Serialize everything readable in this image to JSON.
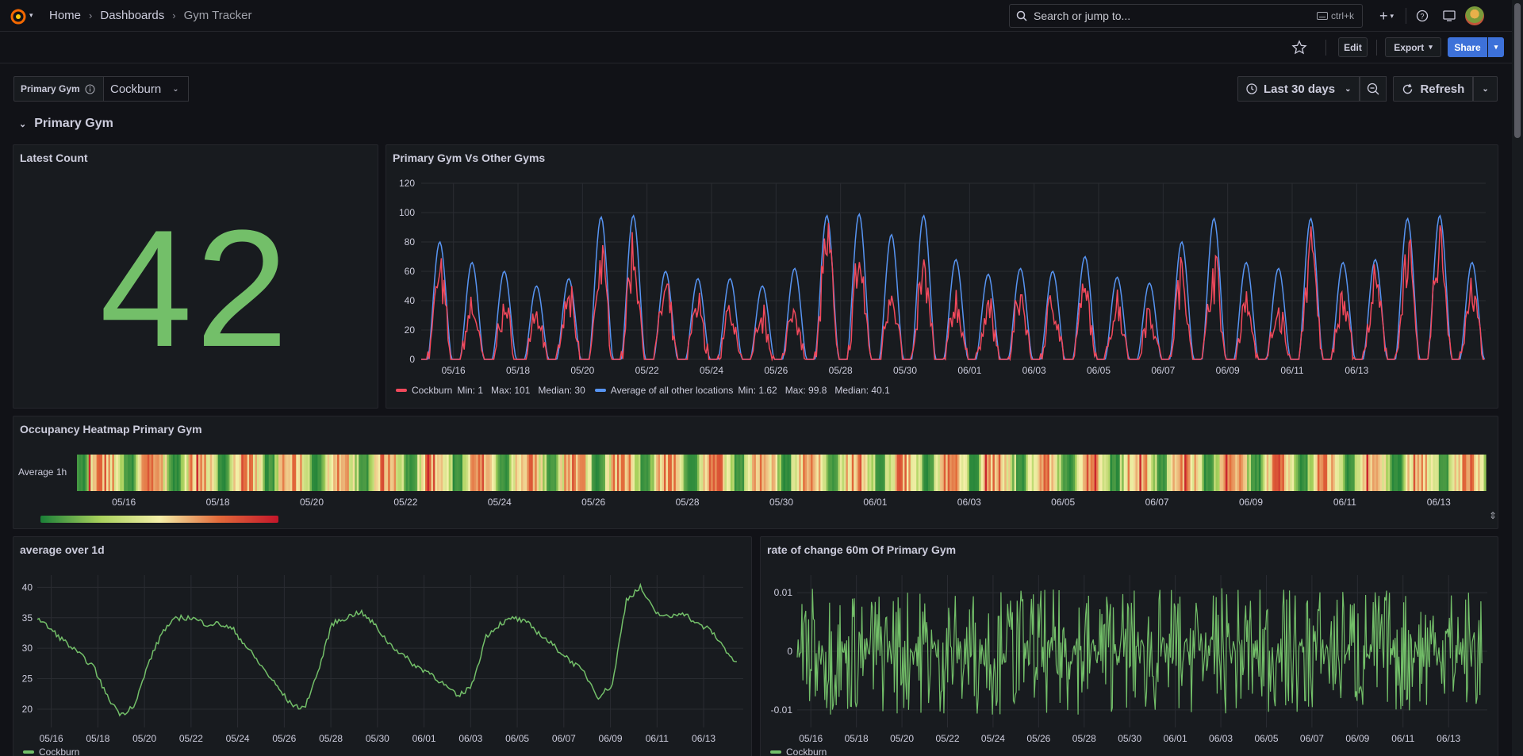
{
  "nav": {
    "breadcrumbs": [
      "Home",
      "Dashboards",
      "Gym Tracker"
    ],
    "search_placeholder": "Search or jump to...",
    "search_shortcut": "ctrl+k"
  },
  "toolbar": {
    "edit_label": "Edit",
    "export_label": "Export",
    "share_label": "Share"
  },
  "variables": {
    "primary_gym_label": "Primary Gym",
    "primary_gym_value": "Cockburn"
  },
  "time": {
    "range_label": "Last 30 days",
    "refresh_label": "Refresh"
  },
  "row": {
    "title": "Primary Gym"
  },
  "colors": {
    "red": "#f2495c",
    "blue": "#5794f2",
    "green": "#73bf69"
  },
  "latest_count": {
    "title": "Latest Count",
    "value": "42"
  },
  "vs_panel": {
    "title": "Primary Gym Vs Other Gyms",
    "legend": [
      {
        "name": "Cockburn",
        "stats": "Min: 1   Max: 101   Median: 30"
      },
      {
        "name": "Average of all other locations",
        "stats": "Min: 1.62   Max: 99.8   Median: 40.1"
      }
    ]
  },
  "heatmap_panel": {
    "title": "Occupancy Heatmap Primary Gym",
    "row_label": "Average 1h"
  },
  "avg_panel": {
    "title": "average over 1d",
    "legend": "Cockburn"
  },
  "rate_panel": {
    "title": "rate of change 60m Of Primary Gym",
    "legend": "Cockburn"
  },
  "chart_data": [
    {
      "type": "line",
      "title": "Primary Gym Vs Other Gyms",
      "x_tick_labels": [
        "05/16",
        "05/18",
        "05/20",
        "05/22",
        "05/24",
        "05/26",
        "05/28",
        "05/30",
        "06/01",
        "06/03",
        "06/05",
        "06/07",
        "06/09",
        "06/11",
        "06/13"
      ],
      "ylim": [
        0,
        120
      ],
      "y_ticks": [
        0,
        20,
        40,
        60,
        80,
        100,
        120
      ],
      "series": [
        {
          "name": "Cockburn",
          "color": "#f2495c",
          "daily_peaks": [
            70,
            45,
            42,
            38,
            50,
            82,
            90,
            55,
            45,
            40,
            35,
            42,
            100,
            80,
            60,
            72,
            48,
            45,
            52,
            50,
            55,
            48,
            40,
            70,
            78,
            50,
            40,
            90,
            55,
            62,
            88,
            100,
            58
          ]
        },
        {
          "name": "Average of all other locations",
          "color": "#5794f2",
          "daily_peaks": [
            80,
            66,
            60,
            50,
            55,
            97,
            98,
            60,
            55,
            55,
            50,
            62,
            98,
            99,
            85,
            98,
            68,
            58,
            62,
            60,
            70,
            56,
            52,
            80,
            96,
            66,
            62,
            96,
            66,
            68,
            96,
            98,
            66
          ]
        }
      ]
    },
    {
      "type": "heatmap",
      "title": "Occupancy Heatmap Primary Gym",
      "y_labels": [
        "Average 1h"
      ],
      "x_tick_labels": [
        "05/16",
        "05/18",
        "05/20",
        "05/22",
        "05/24",
        "05/26",
        "05/28",
        "05/30",
        "06/01",
        "06/03",
        "06/05",
        "06/07",
        "06/09",
        "06/11",
        "06/13"
      ],
      "color_scale": [
        "#1a7f37",
        "#a8d15c",
        "#f4efa8",
        "#e26a3a",
        "#c4162a"
      ]
    },
    {
      "type": "line",
      "title": "average over 1d",
      "x_tick_labels": [
        "05/16",
        "05/18",
        "05/20",
        "05/22",
        "05/24",
        "05/26",
        "05/28",
        "05/30",
        "06/01",
        "06/03",
        "06/05",
        "06/07",
        "06/09",
        "06/11",
        "06/13"
      ],
      "ylim": [
        17,
        42
      ],
      "y_ticks": [
        20,
        25,
        30,
        35,
        40
      ],
      "series": [
        {
          "name": "Cockburn",
          "color": "#73bf69",
          "values": [
            35,
            33,
            31,
            29,
            27,
            22,
            19,
            21,
            28,
            33,
            35,
            35,
            34,
            34,
            33,
            30,
            27,
            24,
            21,
            20,
            26,
            34,
            35,
            36,
            34,
            31,
            29,
            27,
            26,
            24,
            22,
            24,
            32,
            34,
            35,
            34,
            32,
            30,
            28,
            26,
            22,
            24,
            38,
            40,
            36,
            35,
            36,
            34,
            33,
            30,
            27
          ]
        }
      ]
    },
    {
      "type": "line",
      "title": "rate of change 60m Of Primary Gym",
      "x_tick_labels": [
        "05/16",
        "05/18",
        "05/20",
        "05/22",
        "05/24",
        "05/26",
        "05/28",
        "05/30",
        "06/01",
        "06/03",
        "06/05",
        "06/07",
        "06/09",
        "06/11",
        "06/13"
      ],
      "ylim": [
        -0.013,
        0.013
      ],
      "y_tick_labels": [
        "0.01",
        "0",
        "-0.01"
      ],
      "series": [
        {
          "name": "Cockburn",
          "color": "#73bf69",
          "amplitude": 0.012
        }
      ]
    }
  ]
}
